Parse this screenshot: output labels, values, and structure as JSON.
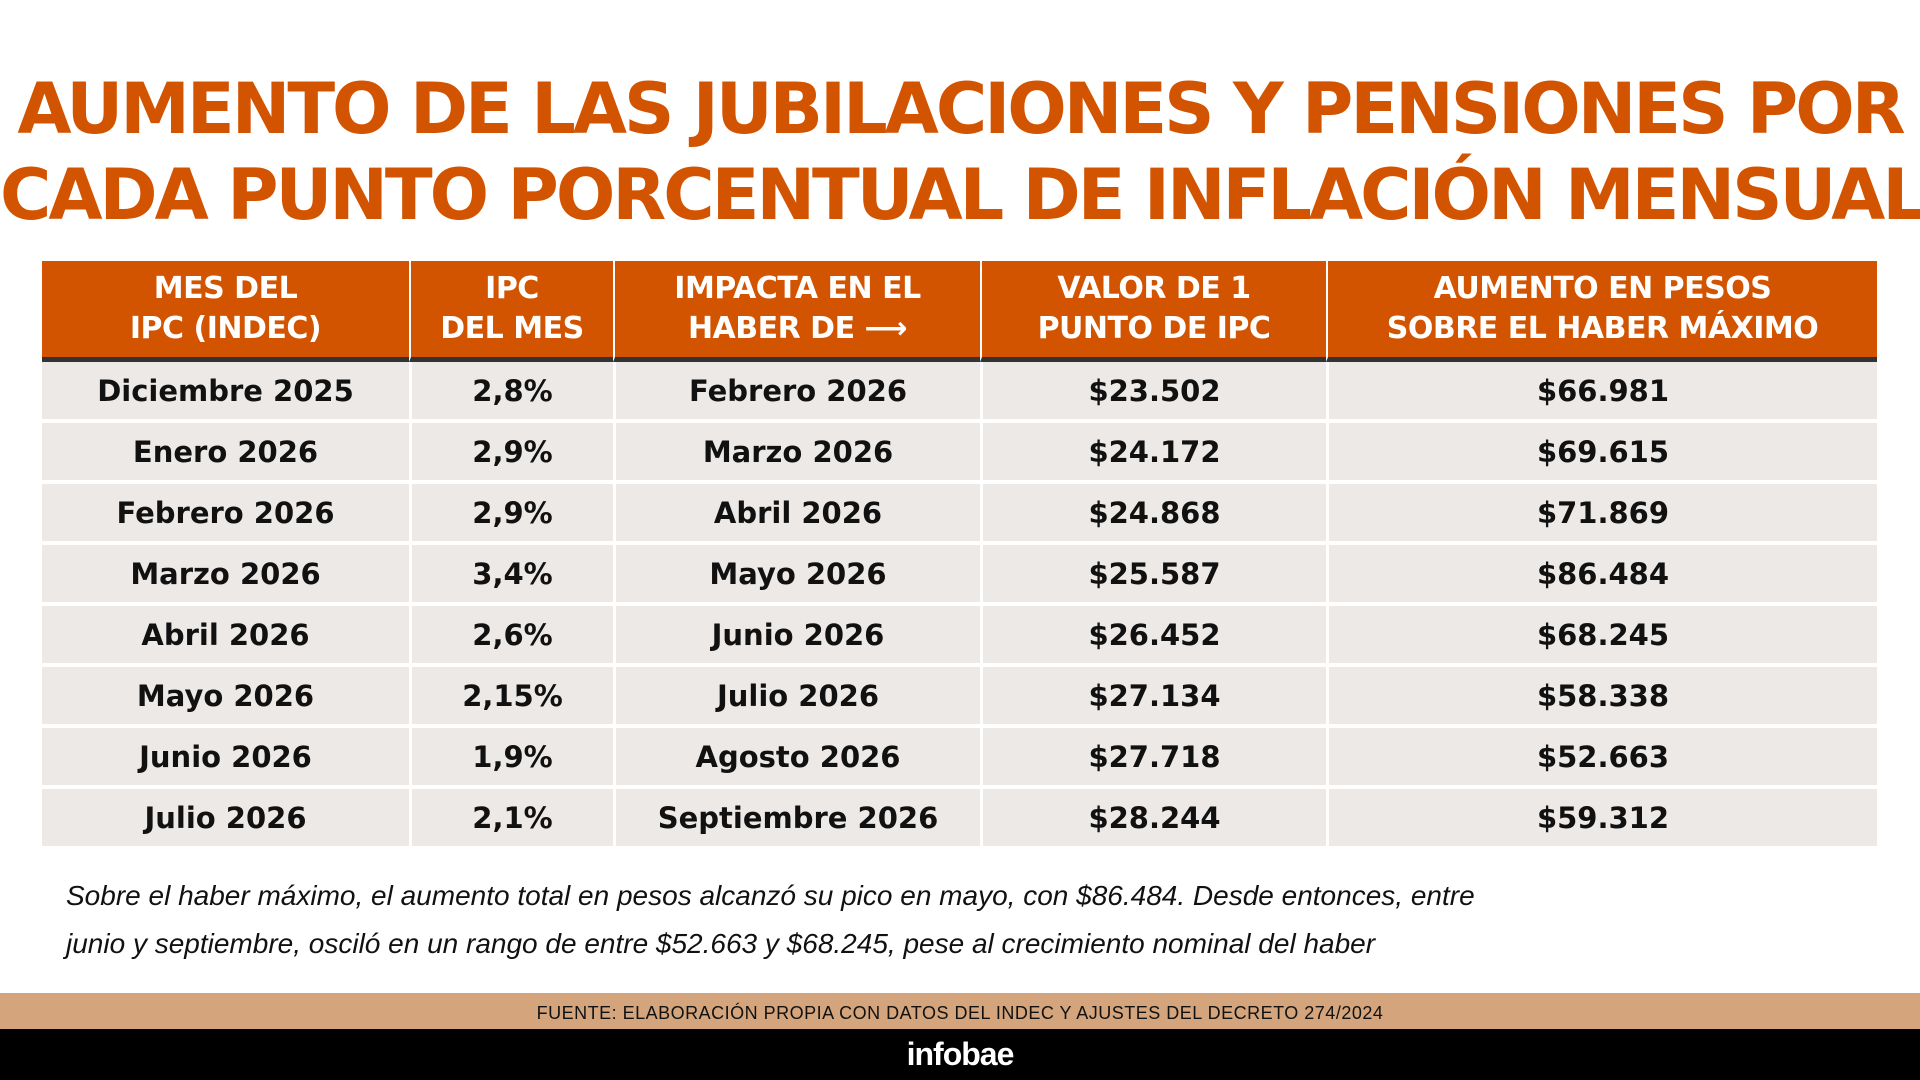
{
  "title": {
    "line1": "AUMENTO DE LAS JUBILACIONES Y PENSIONES POR",
    "line2": "CADA PUNTO PORCENTUAL DE INFLACIÓN MENSUAL"
  },
  "table": {
    "headers": [
      [
        "MES DEL",
        "IPC (INDEC)"
      ],
      [
        "IPC",
        "DEL MES"
      ],
      [
        "IMPACTA EN EL",
        "HABER DE ⟶"
      ],
      [
        "VALOR DE 1",
        "PUNTO DE IPC"
      ],
      [
        "AUMENTO EN PESOS",
        "SOBRE EL HABER MÁXIMO"
      ]
    ],
    "rows": [
      [
        "Diciembre 2025",
        "2,8%",
        "Febrero 2026",
        "$23.502",
        "$66.981"
      ],
      [
        "Enero 2026",
        "2,9%",
        "Marzo 2026",
        "$24.172",
        "$69.615"
      ],
      [
        "Febrero 2026",
        "2,9%",
        "Abril 2026",
        "$24.868",
        "$71.869"
      ],
      [
        "Marzo 2026",
        "3,4%",
        "Mayo 2026",
        "$25.587",
        "$86.484"
      ],
      [
        "Abril 2026",
        "2,6%",
        "Junio 2026",
        "$26.452",
        "$68.245"
      ],
      [
        "Mayo 2026",
        "2,15%",
        "Julio 2026",
        "$27.134",
        "$58.338"
      ],
      [
        "Junio 2026",
        "1,9%",
        "Agosto 2026",
        "$27.718",
        "$52.663"
      ],
      [
        "Julio 2026",
        "2,1%",
        "Septiembre 2026",
        "$28.244",
        "$59.312"
      ]
    ]
  },
  "note": {
    "line1": "Sobre el haber máximo, el aumento total en pesos alcanzó su pico en mayo, con $86.484. Desde entonces, entre",
    "line2": "junio y septiembre, osciló en un rango de entre $52.663 y $68.245, pese al crecimiento nominal del haber"
  },
  "source": "FUENTE: ELABORACIÓN PROPIA CON DATOS DEL INDEC Y AJUSTES DEL DECRETO 274/2024",
  "brand": "infobae",
  "colors": {
    "accent": "#d35400",
    "row_bg": "#ece9e6",
    "source_bar": "#d4a57c",
    "footer": "#000000"
  }
}
